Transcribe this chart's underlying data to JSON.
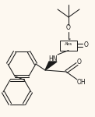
{
  "bg_color": "#fdf8f0",
  "line_color": "#1a1a1a",
  "figsize": [
    1.22,
    1.5
  ],
  "dpi": 100,
  "xlim": [
    0,
    122
  ],
  "ylim": [
    0,
    150
  ]
}
